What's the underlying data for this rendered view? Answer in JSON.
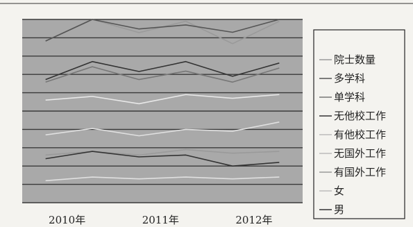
{
  "chart_data": {
    "type": "line",
    "title": "",
    "xlabel": "",
    "ylabel": "",
    "grid": true,
    "legend_position": "right",
    "x_tick_labels": [
      "2010年",
      "2011年",
      "2012年"
    ],
    "x": [
      2009.75,
      2010.25,
      2010.75,
      2011.25,
      2011.75,
      2012.25
    ],
    "ylim": [
      0,
      10
    ],
    "series": [
      {
        "name": "院士数量",
        "color": "#9a9a9a",
        "values": [
          8.82,
          10.0,
          9.28,
          9.9,
          8.68,
          9.9
        ]
      },
      {
        "name": "多学科",
        "color": "#555555",
        "values": [
          8.82,
          10.0,
          9.48,
          9.7,
          9.3,
          10.0
        ]
      },
      {
        "name": "单学科",
        "color": "#777777",
        "values": [
          6.58,
          7.42,
          6.72,
          7.18,
          6.58,
          7.35
        ]
      },
      {
        "name": "无他校工作",
        "color": "#333333",
        "values": [
          6.72,
          7.7,
          7.16,
          7.7,
          6.9,
          7.62
        ]
      },
      {
        "name": "有他校工作",
        "color": "#e8e8e8",
        "values": [
          5.6,
          5.8,
          5.4,
          5.9,
          5.7,
          5.9
        ]
      },
      {
        "name": "无国外工作",
        "color": "#e0e0e0",
        "values": [
          3.7,
          4.05,
          3.65,
          4.0,
          3.9,
          4.4
        ]
      },
      {
        "name": "有国外工作",
        "color": "#9a9a9a",
        "values": [
          2.6,
          2.8,
          2.6,
          2.9,
          2.7,
          2.8
        ]
      },
      {
        "name": "女",
        "color": "#e0e0e0",
        "values": [
          1.2,
          1.4,
          1.3,
          1.4,
          1.3,
          1.4
        ]
      },
      {
        "name": "男",
        "color": "#333333",
        "values": [
          2.4,
          2.8,
          2.5,
          2.6,
          2.0,
          2.2
        ]
      }
    ]
  }
}
